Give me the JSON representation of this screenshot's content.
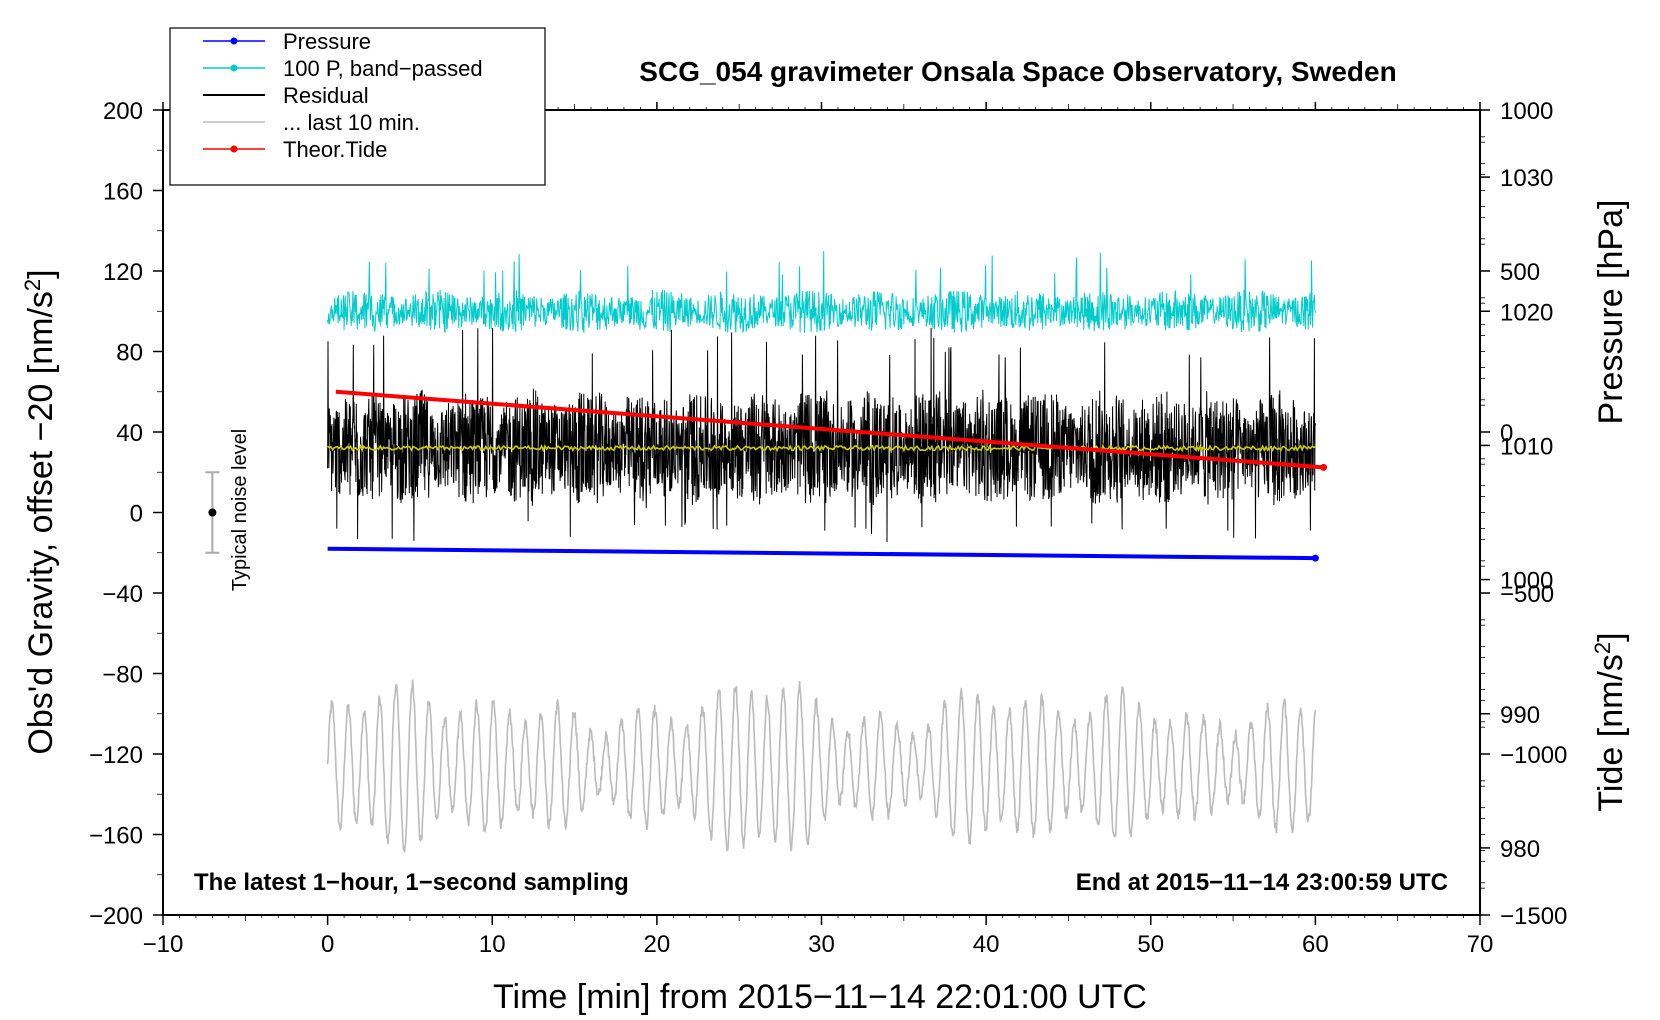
{
  "chart_data": {
    "type": "line",
    "title": "SCG_054 gravimeter Onsala Space Observatory, Sweden",
    "xlabel": "Time [min] from 2015−11−14 22:01:00 UTC",
    "ylabel_left": "Obs'd Gravity, offset −20 [nm/s",
    "ylabel_left_sup": "2",
    "ylabel_left_end": "]",
    "ylabel_right_pressure": "Pressure [hPa]",
    "ylabel_right_tide": "Tide [nm/s",
    "ylabel_right_tide_sup": "2",
    "ylabel_right_tide_end": "]",
    "xlim": [
      -10,
      70
    ],
    "ylim": [
      -200,
      200
    ],
    "pressure_lim": [
      975,
      1035
    ],
    "tide_lim": [
      -1500,
      1000
    ],
    "x_ticks": [
      -10,
      0,
      10,
      20,
      30,
      40,
      50,
      60,
      70
    ],
    "x_tick_labels": [
      "−10",
      "0",
      "10",
      "20",
      "30",
      "40",
      "50",
      "60",
      "70"
    ],
    "y_ticks": [
      200,
      160,
      120,
      80,
      40,
      0,
      -40,
      -80,
      -120,
      -160,
      -200
    ],
    "y_tick_labels": [
      "200",
      "160",
      "120",
      "80",
      "40",
      "0",
      "−40",
      "−80",
      "−120",
      "−160",
      "−200"
    ],
    "pressure_ticks": [
      1030,
      1020,
      1010,
      1000,
      990,
      980
    ],
    "pressure_tick_labels": [
      "1030",
      "1020",
      "1010",
      "1000",
      "990",
      "980"
    ],
    "tide_ticks": [
      1000,
      500,
      0,
      -500,
      -1000,
      -1500
    ],
    "tide_tick_labels": [
      "1000",
      "500",
      "0",
      "−500",
      "−1000",
      "−1500"
    ],
    "legend": [
      {
        "name": "Pressure",
        "color": "#0000ff",
        "marker": true
      },
      {
        "name": "100 P, band−passed",
        "color": "#00cccc",
        "marker": true
      },
      {
        "name": "Residual",
        "color": "#000000",
        "marker": false
      },
      {
        "name": "... last 10 min.",
        "color": "#bbbbbb",
        "marker": false
      },
      {
        "name": "Theor.Tide",
        "color": "#ff0000",
        "marker": true
      }
    ],
    "legend_position": "top-left",
    "series": [
      {
        "name": "Pressure",
        "axis": "pressure",
        "x_range": [
          0,
          60
        ],
        "start": 1002.3,
        "end": 1001.6
      },
      {
        "name": "100 P, band−passed",
        "axis": "gravity",
        "x_range": [
          0,
          60
        ],
        "center": 100,
        "amplitude_typ": 9
      },
      {
        "name": "Residual",
        "axis": "gravity",
        "x_range": [
          0,
          60
        ],
        "center": 32,
        "range": [
          -32,
          95
        ]
      },
      {
        "name": "Residual mean",
        "axis": "gravity",
        "color": "#cccc00",
        "x_range": [
          0,
          60
        ],
        "value": 32
      },
      {
        "name": "... last 10 min.",
        "axis": "gravity",
        "x_range": [
          0,
          60
        ],
        "center": -126,
        "range": [
          -172,
          -66
        ]
      },
      {
        "name": "Theor.Tide",
        "axis": "tide",
        "x_range": [
          0.5,
          60.5
        ],
        "start": 125,
        "end": -110
      }
    ],
    "noise_bar": {
      "label": "Typical noise level",
      "x": -7,
      "center": 0,
      "low": -20,
      "high": 20
    },
    "annotation_left": "The latest 1−hour, 1−second sampling",
    "annotation_right": "End at 2015−11−14 23:00:59 UTC"
  }
}
